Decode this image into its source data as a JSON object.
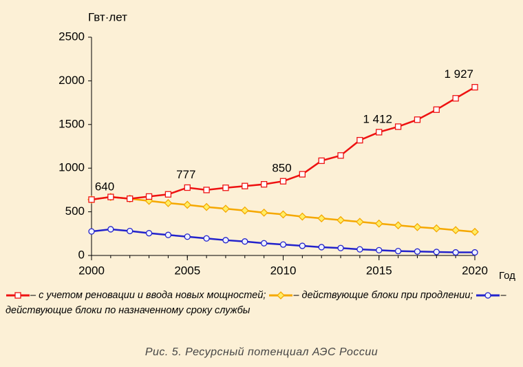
{
  "chart_data": {
    "type": "line",
    "y_label": "Гвт·лет",
    "x_label": "Год",
    "caption": "Рис. 5. Ресурсный потенциал АЭС России",
    "x": [
      2000,
      2001,
      2002,
      2003,
      2004,
      2005,
      2006,
      2007,
      2008,
      2009,
      2010,
      2011,
      2012,
      2013,
      2014,
      2015,
      2016,
      2017,
      2018,
      2019,
      2020
    ],
    "series": [
      {
        "name": "– с учетом реновации и ввода новых мощностей;",
        "color": "#ee1111",
        "marker": "square",
        "values": [
          640,
          670,
          650,
          675,
          700,
          777,
          750,
          775,
          795,
          815,
          850,
          930,
          1085,
          1145,
          1320,
          1412,
          1475,
          1555,
          1670,
          1800,
          1927
        ],
        "value_labels": [
          "640",
          null,
          null,
          null,
          null,
          "777",
          null,
          null,
          null,
          null,
          "850",
          null,
          null,
          null,
          null,
          "1 412",
          null,
          null,
          null,
          null,
          "1 927"
        ]
      },
      {
        "name": "– действующие блоки при продлении;",
        "color": "#f5a800",
        "marker": "diamond",
        "values": [
          640,
          670,
          650,
          625,
          600,
          580,
          555,
          535,
          515,
          490,
          470,
          445,
          425,
          405,
          385,
          365,
          345,
          325,
          310,
          290,
          270
        ]
      },
      {
        "name": "– действующие блоки по назначенному сроку службы",
        "color": "#2222cc",
        "marker": "circle",
        "values": [
          275,
          300,
          280,
          255,
          235,
          215,
          195,
          175,
          160,
          140,
          125,
          110,
          95,
          85,
          70,
          60,
          50,
          45,
          40,
          35,
          35
        ]
      }
    ],
    "xlim": [
      2000,
      2020
    ],
    "xticks": [
      2000,
      2005,
      2010,
      2015,
      2020
    ],
    "ylim": [
      0,
      2500
    ],
    "yticks": [
      0,
      500,
      1000,
      1500,
      2000,
      2500
    ],
    "grid": false
  }
}
